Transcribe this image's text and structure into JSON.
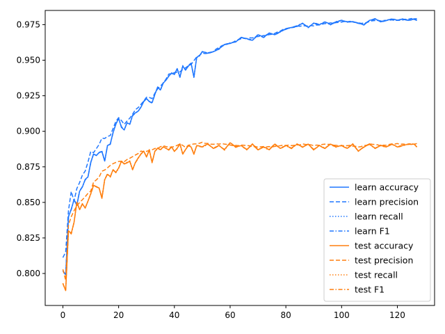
{
  "colors": {
    "learn": "#1f77ff",
    "test": "#ff7f0e"
  },
  "chart_data": {
    "type": "line",
    "title": "",
    "xlabel": "",
    "ylabel": "",
    "xlim": [
      -6.35,
      133.35
    ],
    "ylim": [
      0.7775,
      0.985
    ],
    "grid": false,
    "legend_position": "lower-right",
    "x_ticks": [
      0,
      20,
      40,
      60,
      80,
      100,
      120
    ],
    "x_tick_labels": [
      "0",
      "20",
      "40",
      "60",
      "80",
      "100",
      "120"
    ],
    "y_ticks": [
      0.8,
      0.825,
      0.85,
      0.875,
      0.9,
      0.925,
      0.95,
      0.975
    ],
    "y_tick_labels": [
      "0.800",
      "0.825",
      "0.850",
      "0.875",
      "0.900",
      "0.925",
      "0.950",
      "0.975"
    ],
    "x_range": [
      0,
      127
    ],
    "anchors": {
      "learn_accuracy": [
        [
          0,
          0.802
        ],
        [
          1,
          0.799
        ],
        [
          2,
          0.84
        ],
        [
          3,
          0.845
        ],
        [
          4,
          0.852
        ],
        [
          5,
          0.848
        ],
        [
          6,
          0.858
        ],
        [
          7,
          0.861
        ],
        [
          8,
          0.866
        ],
        [
          9,
          0.868
        ],
        [
          10,
          0.878
        ],
        [
          11,
          0.884
        ],
        [
          12,
          0.883
        ],
        [
          13,
          0.885
        ],
        [
          14,
          0.886
        ],
        [
          15,
          0.879
        ],
        [
          16,
          0.89
        ],
        [
          17,
          0.891
        ],
        [
          18,
          0.899
        ],
        [
          19,
          0.905
        ],
        [
          20,
          0.909
        ],
        [
          21,
          0.903
        ],
        [
          22,
          0.901
        ],
        [
          23,
          0.906
        ],
        [
          24,
          0.905
        ],
        [
          25,
          0.911
        ],
        [
          26,
          0.913
        ],
        [
          27,
          0.914
        ],
        [
          28,
          0.917
        ],
        [
          29,
          0.921
        ],
        [
          30,
          0.923
        ],
        [
          31,
          0.921
        ],
        [
          32,
          0.92
        ],
        [
          33,
          0.926
        ],
        [
          34,
          0.931
        ],
        [
          35,
          0.929
        ],
        [
          36,
          0.934
        ],
        [
          37,
          0.936
        ],
        [
          38,
          0.939
        ],
        [
          39,
          0.941
        ],
        [
          40,
          0.94
        ],
        [
          41,
          0.944
        ],
        [
          42,
          0.938
        ],
        [
          43,
          0.946
        ],
        [
          44,
          0.943
        ],
        [
          45,
          0.946
        ],
        [
          46,
          0.948
        ],
        [
          47,
          0.938
        ],
        [
          48,
          0.952
        ],
        [
          49,
          0.953
        ],
        [
          50,
          0.956
        ],
        [
          52,
          0.955
        ],
        [
          54,
          0.956
        ],
        [
          56,
          0.958
        ],
        [
          58,
          0.961
        ],
        [
          60,
          0.962
        ],
        [
          62,
          0.963
        ],
        [
          64,
          0.966
        ],
        [
          66,
          0.965
        ],
        [
          68,
          0.964
        ],
        [
          70,
          0.968
        ],
        [
          72,
          0.966
        ],
        [
          74,
          0.969
        ],
        [
          76,
          0.968
        ],
        [
          78,
          0.97
        ],
        [
          80,
          0.972
        ],
        [
          82,
          0.973
        ],
        [
          84,
          0.974
        ],
        [
          86,
          0.976
        ],
        [
          88,
          0.973
        ],
        [
          90,
          0.976
        ],
        [
          92,
          0.975
        ],
        [
          94,
          0.977
        ],
        [
          96,
          0.975
        ],
        [
          98,
          0.977
        ],
        [
          100,
          0.978
        ],
        [
          102,
          0.977
        ],
        [
          104,
          0.977
        ],
        [
          106,
          0.976
        ],
        [
          108,
          0.975
        ],
        [
          110,
          0.978
        ],
        [
          112,
          0.979
        ],
        [
          114,
          0.977
        ],
        [
          116,
          0.978
        ],
        [
          118,
          0.979
        ],
        [
          120,
          0.978
        ],
        [
          122,
          0.979
        ],
        [
          124,
          0.978
        ],
        [
          126,
          0.979
        ],
        [
          127,
          0.978
        ]
      ],
      "learn_precision": [
        [
          0,
          0.811
        ],
        [
          1,
          0.815
        ],
        [
          2,
          0.844
        ],
        [
          3,
          0.858
        ],
        [
          4,
          0.851
        ],
        [
          5,
          0.86
        ],
        [
          6,
          0.864
        ],
        [
          7,
          0.869
        ],
        [
          8,
          0.872
        ],
        [
          9,
          0.878
        ],
        [
          10,
          0.886
        ],
        [
          11,
          0.885
        ],
        [
          12,
          0.888
        ],
        [
          13,
          0.891
        ],
        [
          14,
          0.895
        ],
        [
          15,
          0.895
        ],
        [
          16,
          0.896
        ],
        [
          17,
          0.897
        ],
        [
          18,
          0.902
        ],
        [
          19,
          0.907
        ],
        [
          20,
          0.91
        ],
        [
          22,
          0.905
        ],
        [
          24,
          0.909
        ],
        [
          26,
          0.915
        ],
        [
          28,
          0.919
        ],
        [
          30,
          0.924
        ],
        [
          32,
          0.923
        ],
        [
          34,
          0.93
        ],
        [
          36,
          0.934
        ],
        [
          38,
          0.94
        ],
        [
          40,
          0.941
        ],
        [
          42,
          0.942
        ],
        [
          44,
          0.945
        ],
        [
          46,
          0.947
        ],
        [
          48,
          0.952
        ],
        [
          50,
          0.955
        ],
        [
          52,
          0.955
        ],
        [
          54,
          0.956
        ],
        [
          56,
          0.959
        ],
        [
          58,
          0.961
        ],
        [
          60,
          0.962
        ],
        [
          64,
          0.965
        ],
        [
          68,
          0.966
        ],
        [
          72,
          0.967
        ],
        [
          76,
          0.969
        ],
        [
          80,
          0.972
        ],
        [
          84,
          0.974
        ],
        [
          88,
          0.974
        ],
        [
          92,
          0.975
        ],
        [
          96,
          0.976
        ],
        [
          100,
          0.977
        ],
        [
          104,
          0.977
        ],
        [
          108,
          0.976
        ],
        [
          112,
          0.978
        ],
        [
          116,
          0.978
        ],
        [
          120,
          0.978
        ],
        [
          124,
          0.979
        ],
        [
          127,
          0.979
        ]
      ],
      "test_accuracy": [
        [
          0,
          0.793
        ],
        [
          1,
          0.788
        ],
        [
          2,
          0.83
        ],
        [
          3,
          0.828
        ],
        [
          4,
          0.836
        ],
        [
          5,
          0.85
        ],
        [
          6,
          0.845
        ],
        [
          7,
          0.849
        ],
        [
          8,
          0.846
        ],
        [
          9,
          0.851
        ],
        [
          10,
          0.856
        ],
        [
          11,
          0.862
        ],
        [
          12,
          0.861
        ],
        [
          13,
          0.86
        ],
        [
          14,
          0.853
        ],
        [
          15,
          0.866
        ],
        [
          16,
          0.87
        ],
        [
          17,
          0.868
        ],
        [
          18,
          0.873
        ],
        [
          19,
          0.871
        ],
        [
          20,
          0.874
        ],
        [
          21,
          0.879
        ],
        [
          22,
          0.877
        ],
        [
          24,
          0.879
        ],
        [
          25,
          0.873
        ],
        [
          26,
          0.878
        ],
        [
          28,
          0.884
        ],
        [
          29,
          0.886
        ],
        [
          30,
          0.882
        ],
        [
          31,
          0.887
        ],
        [
          32,
          0.878
        ],
        [
          33,
          0.886
        ],
        [
          34,
          0.888
        ],
        [
          35,
          0.887
        ],
        [
          36,
          0.889
        ],
        [
          38,
          0.887
        ],
        [
          39,
          0.889
        ],
        [
          40,
          0.886
        ],
        [
          41,
          0.888
        ],
        [
          42,
          0.891
        ],
        [
          43,
          0.884
        ],
        [
          44,
          0.887
        ],
        [
          45,
          0.89
        ],
        [
          46,
          0.889
        ],
        [
          47,
          0.884
        ],
        [
          48,
          0.89
        ],
        [
          50,
          0.889
        ],
        [
          52,
          0.891
        ],
        [
          54,
          0.888
        ],
        [
          56,
          0.89
        ],
        [
          58,
          0.887
        ],
        [
          60,
          0.892
        ],
        [
          62,
          0.889
        ],
        [
          64,
          0.89
        ],
        [
          66,
          0.887
        ],
        [
          68,
          0.891
        ],
        [
          70,
          0.887
        ],
        [
          72,
          0.889
        ],
        [
          74,
          0.887
        ],
        [
          76,
          0.891
        ],
        [
          78,
          0.888
        ],
        [
          80,
          0.89
        ],
        [
          82,
          0.888
        ],
        [
          84,
          0.891
        ],
        [
          86,
          0.889
        ],
        [
          88,
          0.891
        ],
        [
          90,
          0.887
        ],
        [
          92,
          0.89
        ],
        [
          94,
          0.888
        ],
        [
          96,
          0.891
        ],
        [
          98,
          0.889
        ],
        [
          100,
          0.89
        ],
        [
          102,
          0.888
        ],
        [
          104,
          0.891
        ],
        [
          106,
          0.886
        ],
        [
          108,
          0.889
        ],
        [
          110,
          0.891
        ],
        [
          112,
          0.888
        ],
        [
          114,
          0.89
        ],
        [
          116,
          0.889
        ],
        [
          118,
          0.891
        ],
        [
          120,
          0.889
        ],
        [
          122,
          0.89
        ],
        [
          124,
          0.891
        ],
        [
          126,
          0.891
        ],
        [
          127,
          0.889
        ]
      ],
      "test_precision": [
        [
          0,
          0.803
        ],
        [
          1,
          0.795
        ],
        [
          2,
          0.834
        ],
        [
          3,
          0.84
        ],
        [
          4,
          0.844
        ],
        [
          5,
          0.848
        ],
        [
          6,
          0.85
        ],
        [
          7,
          0.852
        ],
        [
          8,
          0.854
        ],
        [
          9,
          0.856
        ],
        [
          10,
          0.858
        ],
        [
          11,
          0.864
        ],
        [
          12,
          0.866
        ],
        [
          13,
          0.868
        ],
        [
          14,
          0.872
        ],
        [
          15,
          0.873
        ],
        [
          16,
          0.874
        ],
        [
          17,
          0.876
        ],
        [
          18,
          0.877
        ],
        [
          19,
          0.878
        ],
        [
          20,
          0.879
        ],
        [
          22,
          0.879
        ],
        [
          24,
          0.881
        ],
        [
          26,
          0.883
        ],
        [
          28,
          0.886
        ],
        [
          30,
          0.886
        ],
        [
          32,
          0.887
        ],
        [
          34,
          0.888
        ],
        [
          36,
          0.89
        ],
        [
          38,
          0.889
        ],
        [
          40,
          0.889
        ],
        [
          42,
          0.891
        ],
        [
          44,
          0.889
        ],
        [
          46,
          0.891
        ],
        [
          48,
          0.891
        ],
        [
          50,
          0.892
        ],
        [
          54,
          0.891
        ],
        [
          58,
          0.891
        ],
        [
          62,
          0.89
        ],
        [
          66,
          0.89
        ],
        [
          70,
          0.889
        ],
        [
          74,
          0.889
        ],
        [
          78,
          0.89
        ],
        [
          82,
          0.89
        ],
        [
          86,
          0.891
        ],
        [
          90,
          0.89
        ],
        [
          94,
          0.891
        ],
        [
          98,
          0.89
        ],
        [
          102,
          0.89
        ],
        [
          106,
          0.889
        ],
        [
          110,
          0.891
        ],
        [
          114,
          0.89
        ],
        [
          118,
          0.891
        ],
        [
          122,
          0.891
        ],
        [
          127,
          0.891
        ]
      ]
    },
    "series": [
      {
        "name": "learn accuracy",
        "color": "learn",
        "dash": "solid",
        "source": "learn_accuracy",
        "variation": [
          0,
          0.0003
        ]
      },
      {
        "name": "learn precision",
        "color": "learn",
        "dash": "dashed",
        "source": "learn_precision",
        "variation": [
          1,
          0.0004
        ]
      },
      {
        "name": "learn recall",
        "color": "learn",
        "dash": "dotted",
        "source": "learn_accuracy",
        "variation": [
          2,
          0.0002
        ]
      },
      {
        "name": "learn F1",
        "color": "learn",
        "dash": "dashdot",
        "source": "learn_accuracy",
        "variation": [
          3,
          0.0003
        ]
      },
      {
        "name": "test accuracy",
        "color": "test",
        "dash": "solid",
        "source": "test_accuracy",
        "variation": [
          4,
          0.0003
        ]
      },
      {
        "name": "test precision",
        "color": "test",
        "dash": "dashed",
        "source": "test_precision",
        "variation": [
          5,
          0.0004
        ]
      },
      {
        "name": "test recall",
        "color": "test",
        "dash": "dotted",
        "source": "test_accuracy",
        "variation": [
          6,
          0.0002
        ]
      },
      {
        "name": "test F1",
        "color": "test",
        "dash": "dashdot",
        "source": "test_accuracy",
        "variation": [
          7,
          0.0003
        ]
      }
    ]
  }
}
